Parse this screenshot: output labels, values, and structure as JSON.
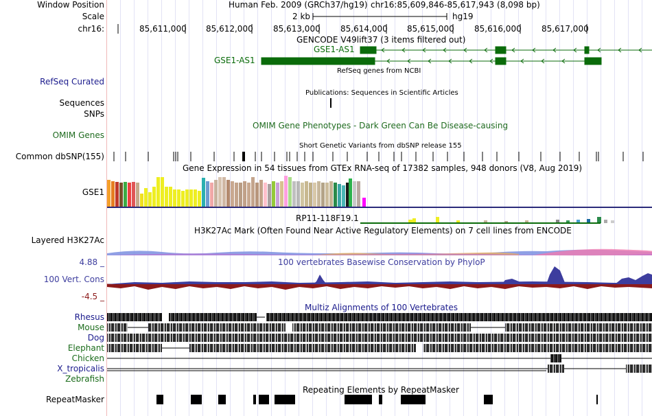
{
  "header": {
    "window_position_label": "Window Position",
    "assembly": "Human Feb. 2009 (GRCh37/hg19)",
    "coords": "chr16:85,609,846-85,617,943 (8,098 bp)",
    "scale_label": "Scale",
    "scale_value": "2 kb",
    "scale_db": "hg19",
    "chrom_label": "chr16:",
    "ticks": [
      "85,611,000",
      "85,612,000",
      "85,613,000",
      "85,614,000",
      "85,615,000",
      "85,616,000",
      "85,617,000"
    ]
  },
  "tracks": {
    "gencode_title": "GENCODE V49lift37 (3 items filtered out)",
    "gene1": "GSE1-AS1",
    "gene2": "GSE1-AS1",
    "refseq_center": "RefSeq genes from NCBI",
    "refseq_label": "RefSeq Curated",
    "publications_center": "Publications: Sequences in Scientific Articles",
    "sequences_label": "Sequences",
    "snps_label": "SNPs",
    "omim_label": "OMIM Genes",
    "omim_center": "OMIM Gene Phenotypes - Dark Green Can Be Disease-causing",
    "dbsnp_label": "Common dbSNP(155)",
    "dbsnp_center": "Short Genetic Variants from dbSNP release 155",
    "gtex_center": "Gene Expression in 54 tissues from GTEx RNA-seq of 17382 samples, 948 donors (V8, Aug 2019)",
    "gtex_gene1": "GSE1",
    "gtex_gene2": "RP11-118F19.1",
    "h3k27ac_center": "H3K27Ac Mark (Often Found Near Active Regulatory Elements) on 7 cell lines from ENCODE",
    "h3k27ac_label": "Layered H3K27Ac",
    "phylop_max": "4.88 _",
    "phylop_min": "-4.5 _",
    "phylop_center": "100 vertebrates Basewise Conservation by PhyloP",
    "phylop_label": "100 Vert. Cons",
    "multiz_center": "Multiz Alignments of 100 Vertebrates",
    "species": [
      "Rhesus",
      "Mouse",
      "Dog",
      "Elephant",
      "Chicken",
      "X_tropicalis",
      "Zebrafish"
    ],
    "repeat_center": "Repeating Elements by RepeatMasker",
    "repeat_label": "RepeatMasker"
  },
  "colors": {
    "gene_green": "#0a6b0a",
    "label_blue": "#1a1a8c",
    "phylop_blue": "#3d3d9e",
    "phylop_red": "#8c1a1a",
    "omim_green": "#1f6b1f"
  }
}
